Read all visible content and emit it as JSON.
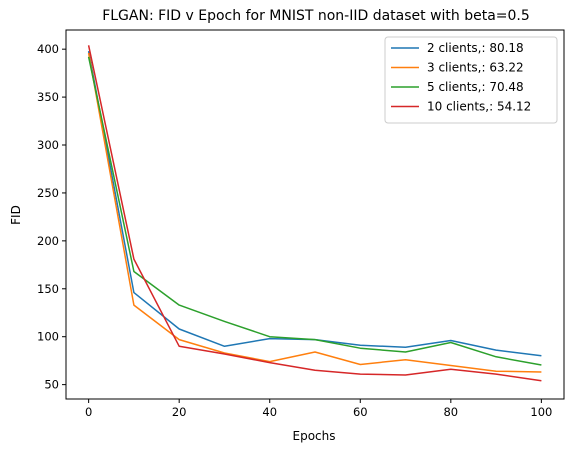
{
  "chart_data": {
    "type": "line",
    "title": "FLGAN: FID v Epoch for MNIST non-IID dataset with beta=0.5",
    "xlabel": "Epochs",
    "ylabel": "FID",
    "xlim": [
      -5,
      105
    ],
    "ylim": [
      35,
      420
    ],
    "xticks": [
      0,
      20,
      40,
      60,
      80,
      100
    ],
    "yticks": [
      50,
      100,
      150,
      200,
      250,
      300,
      350,
      400
    ],
    "grid": false,
    "legend_position": "top-right",
    "x": [
      0,
      10,
      20,
      30,
      40,
      50,
      60,
      70,
      80,
      90,
      100
    ],
    "series": [
      {
        "name": "2 clients,: 80.18",
        "color": "#1f77b4",
        "values": [
          398,
          146,
          108,
          90,
          98,
          97,
          91,
          89,
          96,
          86,
          80.18
        ]
      },
      {
        "name": "3 clients,: 63.22",
        "color": "#ff7f0e",
        "values": [
          396,
          133,
          97,
          83,
          74,
          84,
          71,
          76,
          70,
          64,
          63.22
        ]
      },
      {
        "name": "5 clients,: 70.48",
        "color": "#2ca02c",
        "values": [
          392,
          168,
          133,
          116,
          100,
          97,
          88,
          84,
          94,
          79,
          70.48
        ]
      },
      {
        "name": "10 clients,: 54.12",
        "color": "#d62728",
        "values": [
          404,
          181,
          90,
          82,
          73,
          65,
          61,
          60,
          66,
          61,
          54.12
        ]
      }
    ]
  }
}
